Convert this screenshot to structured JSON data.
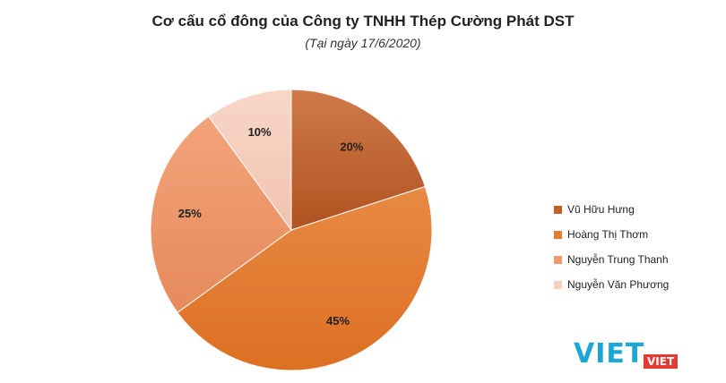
{
  "chart_data": {
    "type": "pie",
    "title": "Cơ cấu cổ đông của Công ty TNHH Thép Cường Phát DST",
    "subtitle": "(Tại ngày 17/6/2020)",
    "categories": [
      "Vũ Hữu Hưng",
      "Hoàng Thị Thơm",
      "Nguyễn Trung Thanh",
      "Nguyễn Văn Phương"
    ],
    "values": [
      20,
      45,
      25,
      10
    ],
    "data_labels": [
      "20%",
      "45%",
      "25%",
      "10%"
    ],
    "colors": [
      "#c0602a",
      "#e57b30",
      "#ef9a6c",
      "#f6cfbe"
    ],
    "legend_position": "right"
  },
  "watermark": {
    "brand": "VIET",
    "sub": "VIET"
  }
}
